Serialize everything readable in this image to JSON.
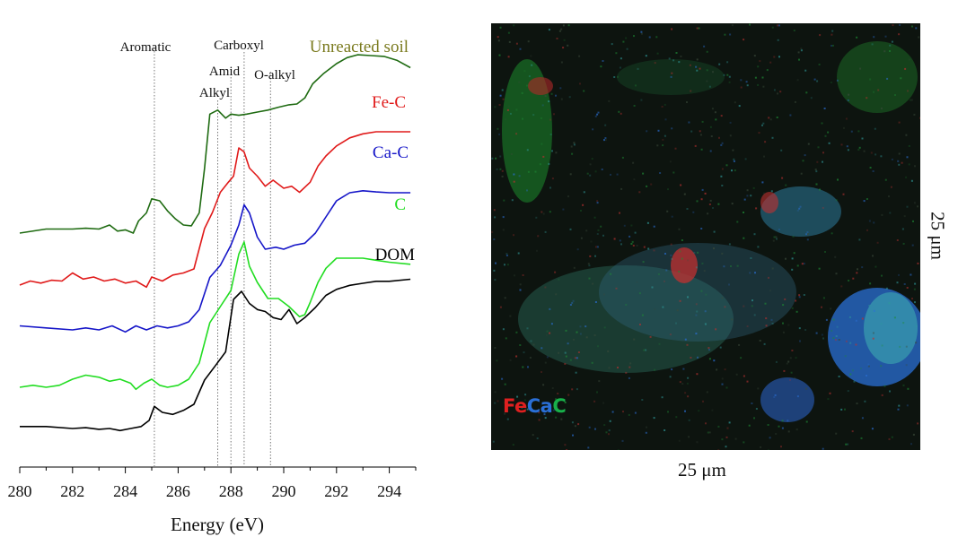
{
  "chart_data": {
    "type": "line",
    "xlabel": "Energy (eV)",
    "ylabel": "",
    "xlim": [
      280,
      295
    ],
    "xticks": [
      280,
      282,
      284,
      286,
      288,
      290,
      292,
      294
    ],
    "stacked_offset": true,
    "reference_lines": [
      {
        "label": "Aromatic",
        "x": 285.1
      },
      {
        "label": "Alkyl",
        "x": 287.5
      },
      {
        "label": "Amid",
        "x": 288.0
      },
      {
        "label": "Carboxyl",
        "x": 288.5
      },
      {
        "label": "O-alkyl",
        "x": 289.5
      }
    ],
    "series": [
      {
        "name": "Unreacted soil",
        "color": "#1f6b12",
        "label_color": "#7a7a1e",
        "x": [
          280.0,
          281.0,
          282.0,
          282.5,
          283.0,
          283.4,
          283.7,
          284.0,
          284.3,
          284.5,
          284.8,
          285.0,
          285.3,
          285.6,
          285.9,
          286.2,
          286.5,
          286.8,
          287.0,
          287.2,
          287.5,
          287.8,
          288.0,
          288.3,
          288.6,
          289.0,
          289.4,
          289.8,
          290.2,
          290.5,
          290.8,
          291.1,
          291.5,
          292.0,
          292.4,
          292.8,
          293.3,
          293.8,
          294.3,
          294.8
        ],
        "y": [
          0.0,
          0.1,
          0.1,
          0.12,
          0.1,
          0.2,
          0.05,
          0.08,
          0.0,
          0.3,
          0.5,
          0.85,
          0.8,
          0.55,
          0.35,
          0.2,
          0.18,
          0.5,
          1.6,
          2.95,
          3.05,
          2.85,
          2.95,
          2.92,
          2.95,
          3.0,
          3.05,
          3.12,
          3.18,
          3.2,
          3.35,
          3.7,
          3.95,
          4.2,
          4.35,
          4.42,
          4.4,
          4.38,
          4.28,
          4.1
        ]
      },
      {
        "name": "Fe-C",
        "color": "#e01a1a",
        "label_color": "#e01a1a",
        "x": [
          280.0,
          280.4,
          280.8,
          281.2,
          281.6,
          282.0,
          282.4,
          282.8,
          283.2,
          283.6,
          284.0,
          284.4,
          284.8,
          285.0,
          285.4,
          285.8,
          286.2,
          286.6,
          287.0,
          287.3,
          287.6,
          287.9,
          288.1,
          288.3,
          288.5,
          288.7,
          289.0,
          289.3,
          289.6,
          290.0,
          290.3,
          290.6,
          291.0,
          291.3,
          291.6,
          292.0,
          292.5,
          293.0,
          293.5,
          294.0,
          294.8
        ],
        "y": [
          0.0,
          0.1,
          0.05,
          0.12,
          0.1,
          0.3,
          0.15,
          0.2,
          0.1,
          0.15,
          0.05,
          0.1,
          -0.05,
          0.2,
          0.1,
          0.25,
          0.3,
          0.4,
          1.4,
          1.8,
          2.3,
          2.55,
          2.7,
          3.4,
          3.3,
          2.9,
          2.7,
          2.45,
          2.6,
          2.4,
          2.45,
          2.3,
          2.55,
          2.95,
          3.2,
          3.45,
          3.65,
          3.75,
          3.8,
          3.8,
          3.8
        ]
      },
      {
        "name": "Ca-C",
        "color": "#1515c8",
        "label_color": "#1515c8",
        "x": [
          280.0,
          281.0,
          282.0,
          282.5,
          283.0,
          283.5,
          284.0,
          284.4,
          284.8,
          285.2,
          285.6,
          286.0,
          286.4,
          286.8,
          287.2,
          287.6,
          288.0,
          288.3,
          288.5,
          288.7,
          289.0,
          289.3,
          289.7,
          290.0,
          290.4,
          290.8,
          291.2,
          291.6,
          292.0,
          292.5,
          293.0,
          293.5,
          294.0,
          294.8
        ],
        "y": [
          0.1,
          0.05,
          0.0,
          0.05,
          0.0,
          0.1,
          -0.05,
          0.1,
          0.0,
          0.1,
          0.05,
          0.1,
          0.2,
          0.5,
          1.3,
          1.6,
          2.1,
          2.6,
          3.1,
          2.9,
          2.3,
          2.0,
          2.05,
          2.0,
          2.1,
          2.15,
          2.4,
          2.8,
          3.2,
          3.4,
          3.45,
          3.42,
          3.4,
          3.4
        ]
      },
      {
        "name": "C",
        "color": "#22dd22",
        "label_color": "#22dd22",
        "x": [
          280.0,
          280.5,
          281.0,
          281.5,
          282.0,
          282.5,
          283.0,
          283.4,
          283.8,
          284.2,
          284.4,
          284.7,
          285.0,
          285.3,
          285.6,
          286.0,
          286.4,
          286.8,
          287.2,
          287.6,
          288.0,
          288.3,
          288.5,
          288.7,
          289.0,
          289.4,
          289.8,
          290.2,
          290.6,
          290.8,
          291.0,
          291.3,
          291.6,
          292.0,
          292.5,
          293.0,
          293.5,
          294.0,
          294.8
        ],
        "y": [
          0.0,
          0.05,
          0.0,
          0.05,
          0.2,
          0.3,
          0.25,
          0.15,
          0.2,
          0.1,
          -0.05,
          0.1,
          0.2,
          0.05,
          0.0,
          0.05,
          0.2,
          0.6,
          1.6,
          2.0,
          2.4,
          3.3,
          3.6,
          3.0,
          2.6,
          2.2,
          2.2,
          2.0,
          1.75,
          1.8,
          2.1,
          2.6,
          2.95,
          3.2,
          3.2,
          3.2,
          3.15,
          3.1,
          3.05
        ]
      },
      {
        "name": "DOM",
        "color": "#000000",
        "label_color": "#000000",
        "x": [
          280.0,
          281.0,
          282.0,
          282.5,
          283.0,
          283.4,
          283.8,
          284.2,
          284.6,
          284.9,
          285.1,
          285.4,
          285.8,
          286.2,
          286.6,
          287.0,
          287.4,
          287.8,
          288.1,
          288.4,
          288.7,
          289.0,
          289.3,
          289.6,
          289.9,
          290.2,
          290.5,
          290.8,
          291.2,
          291.6,
          292.0,
          292.5,
          293.0,
          293.5,
          294.0,
          294.8
        ],
        "y": [
          0.05,
          0.05,
          0.0,
          0.02,
          -0.02,
          0.0,
          -0.05,
          0.0,
          0.05,
          0.2,
          0.55,
          0.4,
          0.35,
          0.45,
          0.6,
          1.2,
          1.55,
          1.9,
          3.2,
          3.4,
          3.1,
          2.95,
          2.9,
          2.75,
          2.7,
          2.95,
          2.6,
          2.75,
          3.0,
          3.3,
          3.45,
          3.55,
          3.6,
          3.65,
          3.65,
          3.7
        ]
      }
    ]
  },
  "map": {
    "x_scale_label": "25 μm",
    "y_scale_label": "25 μm",
    "legend": [
      {
        "text": "Fe",
        "color": "#e02020"
      },
      {
        "text": "Ca",
        "color": "#2a6fd6"
      },
      {
        "text": "C",
        "color": "#18b04a"
      }
    ]
  }
}
